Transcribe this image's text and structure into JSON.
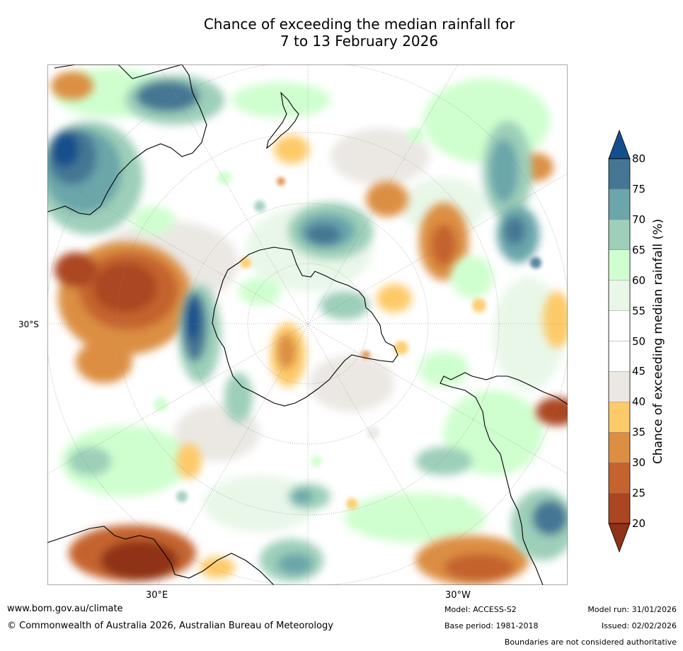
{
  "title_line1": "Chance of exceeding the median rainfall for",
  "title_line2": "7 to 13 February 2026",
  "map": {
    "projection": "South polar stereographic",
    "lat_label": "30°S",
    "lon_labels": [
      "30°E",
      "30°W"
    ]
  },
  "colorbar": {
    "label": "Chance of exceeding median rainfall (%)",
    "ticks": [
      "80",
      "75",
      "70",
      "65",
      "60",
      "55",
      "50",
      "45",
      "40",
      "35",
      "30",
      "25",
      "20"
    ],
    "bins": [
      {
        "range": "<20",
        "color": "#8f3216"
      },
      {
        "range": "20-25",
        "color": "#ab4622"
      },
      {
        "range": "25-30",
        "color": "#c5632f"
      },
      {
        "range": "30-35",
        "color": "#dc8f43"
      },
      {
        "range": "35-40",
        "color": "#fdca69"
      },
      {
        "range": "40-45",
        "color": "#ebe8e4"
      },
      {
        "range": "45-50",
        "color": "#ffffff"
      },
      {
        "range": "50-55",
        "color": "#ffffff"
      },
      {
        "range": "55-60",
        "color": "#e9f7e9"
      },
      {
        "range": "60-65",
        "color": "#cfffcf"
      },
      {
        "range": "65-70",
        "color": "#9dcfb9"
      },
      {
        "range": "70-75",
        "color": "#6ba6aa"
      },
      {
        "range": "75-80",
        "color": "#457794"
      },
      {
        "range": ">80",
        "color": "#134f8c"
      }
    ]
  },
  "footer": {
    "website": "www.bom.gov.au/climate",
    "copyright": "© Commonwealth of Australia 2026, Australian Bureau of Meteorology",
    "model": "Model: ACCESS-S2",
    "base_period": "Base period: 1981-2018",
    "model_run": "Model run: 31/01/2026",
    "issued": "Issued: 02/02/2026",
    "disclaimer": "Boundaries are not considered authoritative"
  }
}
